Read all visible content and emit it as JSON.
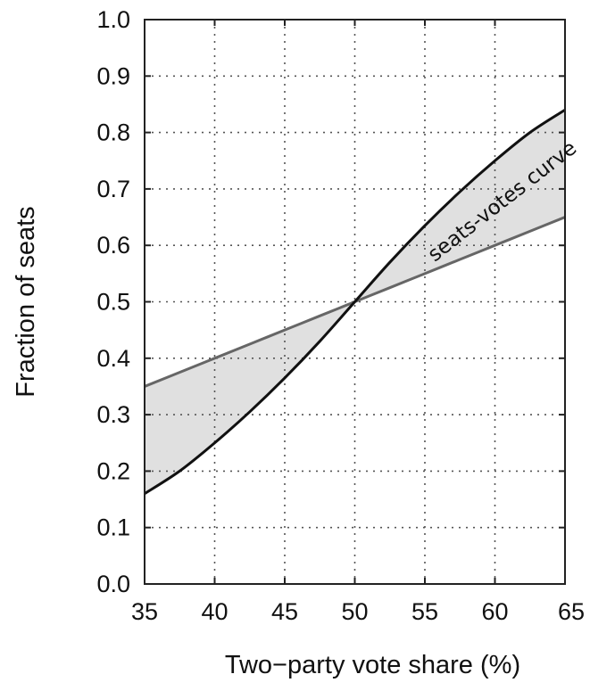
{
  "chart_data": {
    "type": "line",
    "title": "",
    "xlabel": "Two−party vote share (%)",
    "ylabel": "Fraction of seats",
    "xlim": [
      35,
      65
    ],
    "ylim": [
      0.0,
      1.0
    ],
    "x_ticks": [
      "35",
      "40",
      "45",
      "50",
      "55",
      "60",
      "65"
    ],
    "y_ticks": [
      "0.0",
      "0.1",
      "0.2",
      "0.3",
      "0.4",
      "0.5",
      "0.6",
      "0.7",
      "0.8",
      "0.9",
      "1.0"
    ],
    "grid": true,
    "shaded_between_series": true,
    "x": [
      35,
      37.5,
      40,
      42.5,
      45,
      47.5,
      50,
      52.5,
      55,
      57.5,
      60,
      62.5,
      65
    ],
    "series": [
      {
        "color": "#111111",
        "values": [
          0.16,
          0.2,
          0.25,
          0.305,
          0.365,
          0.43,
          0.5,
          0.57,
          0.635,
          0.695,
          0.75,
          0.8,
          0.84
        ]
      },
      {
        "color": "#666666",
        "values": [
          0.35,
          0.375,
          0.4,
          0.425,
          0.45,
          0.475,
          0.5,
          0.525,
          0.55,
          0.575,
          0.6,
          0.625,
          0.65
        ]
      }
    ],
    "annotations": [
      {
        "text": "seats-votes curve",
        "x": 55.7,
        "y": 0.57,
        "rotation": -38
      }
    ],
    "colors": {
      "fill": "#e0e0e0",
      "grid": "#555555",
      "frame": "#222222"
    }
  }
}
